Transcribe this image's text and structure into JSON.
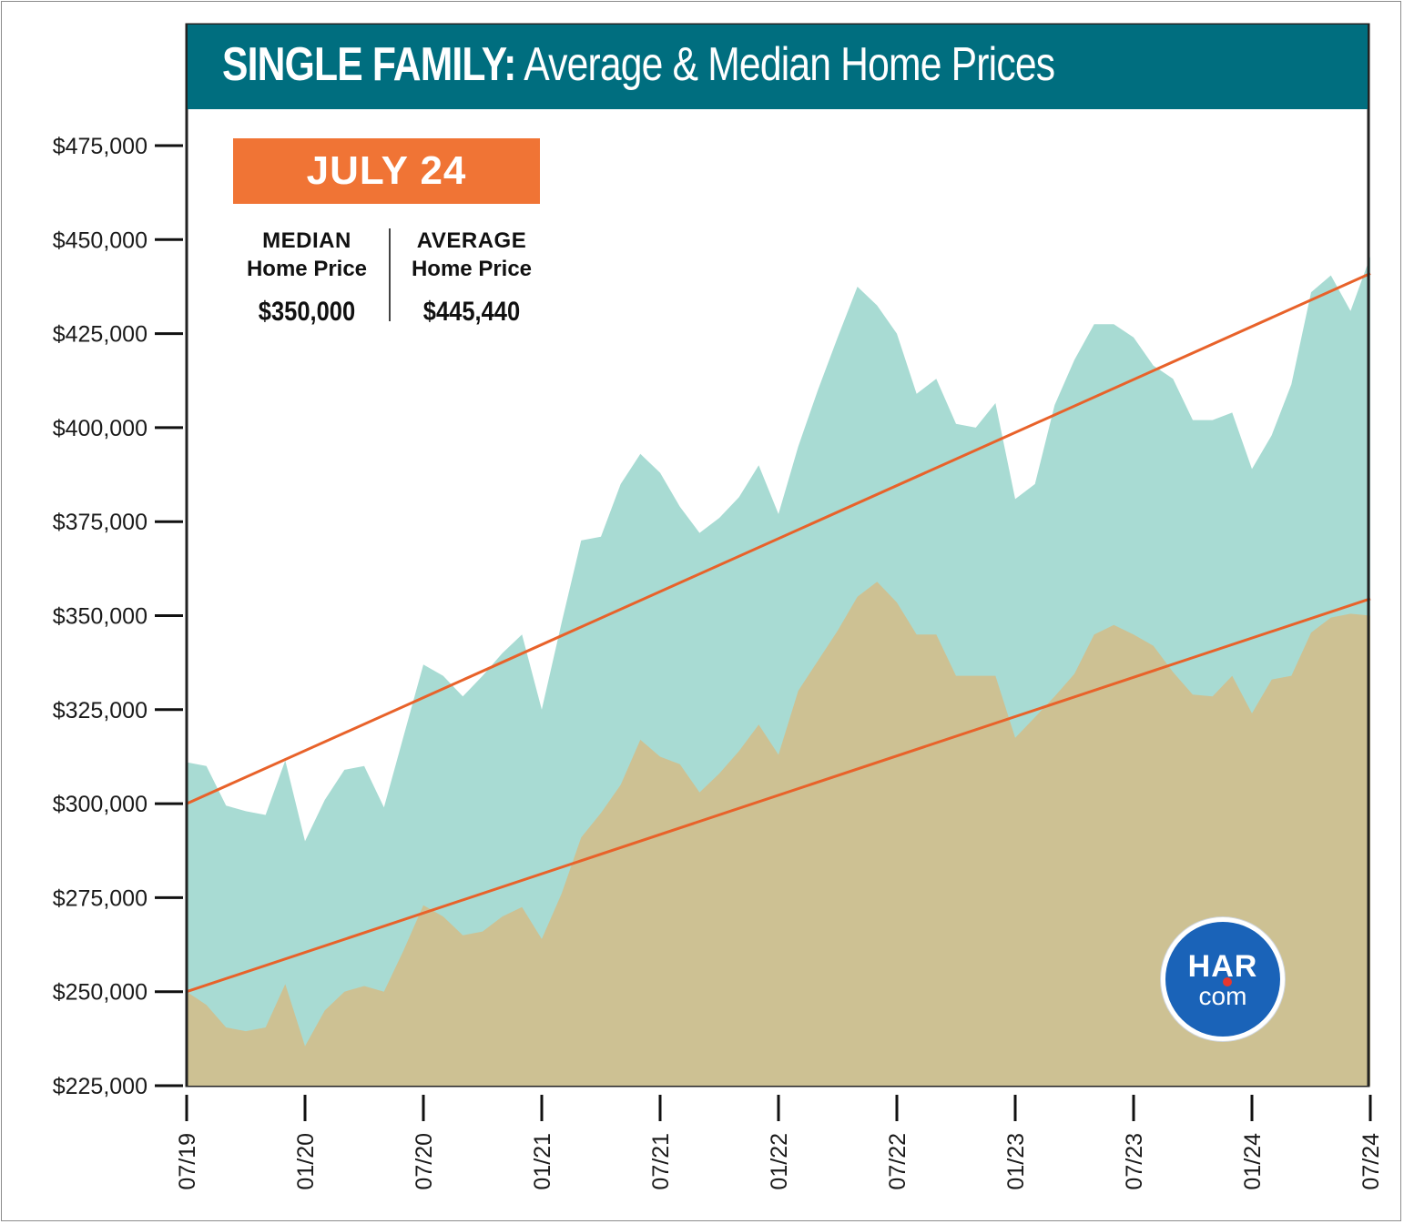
{
  "header": {
    "title_bold": "SINGLE FAMILY:",
    "title_rest": "Average & Median Home Prices"
  },
  "badge": {
    "label": "JULY 24"
  },
  "stats": {
    "median": {
      "label1": "MEDIAN",
      "label2": "Home Price",
      "value": "$350,000"
    },
    "average": {
      "label1": "AVERAGE",
      "label2": "Home Price",
      "value": "$445,440"
    }
  },
  "logo": {
    "line1": "HAR",
    "line2": "com"
  },
  "colors": {
    "title_bg": "#006e7f",
    "badge_bg": "#f07435",
    "average_fill": "#a8dbd3",
    "median_fill": "#cdc193",
    "trend_line": "#e8622a",
    "logo_bg": "#1a63b8"
  },
  "chart_data": {
    "type": "area",
    "title": "SINGLE FAMILY: Average & Median Home Prices",
    "xlabel": "",
    "ylabel": "",
    "ylim": [
      225000,
      475000
    ],
    "y_ticks": [
      225000,
      250000,
      275000,
      300000,
      325000,
      350000,
      375000,
      400000,
      425000,
      450000,
      475000
    ],
    "y_tick_labels": [
      "$225,000",
      "$250,000",
      "$275,000",
      "$300,000",
      "$325,000",
      "$350,000",
      "$375,000",
      "$400,000",
      "$425,000",
      "$450,000",
      "$475,000"
    ],
    "x_tick_labels": [
      "07/19",
      "01/20",
      "07/20",
      "01/21",
      "07/21",
      "01/22",
      "07/22",
      "01/23",
      "07/23",
      "01/24",
      "07/24"
    ],
    "x_tick_months": [
      0,
      6,
      12,
      18,
      24,
      30,
      36,
      42,
      48,
      54,
      60
    ],
    "months": [
      0,
      1,
      2,
      3,
      4,
      5,
      6,
      7,
      8,
      9,
      10,
      11,
      12,
      13,
      14,
      15,
      16,
      17,
      18,
      19,
      20,
      21,
      22,
      23,
      24,
      25,
      26,
      27,
      28,
      29,
      30,
      31,
      32,
      33,
      34,
      35,
      36,
      37,
      38,
      39,
      40,
      41,
      42,
      43,
      44,
      45,
      46,
      47,
      48,
      49,
      50,
      51,
      52,
      53,
      54,
      55,
      56,
      57,
      58,
      59,
      60
    ],
    "series": [
      {
        "name": "Average Home Price",
        "values": [
          311000,
          310000,
          299500,
          298000,
          297000,
          311500,
          290000,
          301000,
          309000,
          310000,
          299000,
          318000,
          337000,
          334000,
          328500,
          334000,
          340000,
          345000,
          325000,
          348000,
          370000,
          371000,
          385000,
          393000,
          388000,
          379000,
          372000,
          376000,
          381500,
          390000,
          377000,
          395000,
          410000,
          424000,
          437500,
          432500,
          425000,
          409000,
          413000,
          401000,
          400000,
          406500,
          381000,
          385000,
          406000,
          418000,
          427500,
          427500,
          424000,
          416500,
          413000,
          402000,
          402000,
          404000,
          389000,
          398000,
          411500,
          436000,
          440500,
          431000,
          445440
        ]
      },
      {
        "name": "Median Home Price",
        "values": [
          250000,
          246500,
          240500,
          239500,
          240500,
          252000,
          235500,
          245000,
          250000,
          251500,
          250000,
          261000,
          273000,
          270000,
          265000,
          266000,
          270000,
          272500,
          264000,
          276000,
          291000,
          297500,
          305000,
          317000,
          312500,
          310500,
          303000,
          308000,
          314000,
          321000,
          313000,
          330000,
          338000,
          346000,
          355000,
          359000,
          353500,
          345000,
          345000,
          334000,
          334000,
          334000,
          317500,
          323000,
          328500,
          334500,
          345000,
          347500,
          345000,
          342000,
          335000,
          329000,
          328500,
          334000,
          324000,
          333000,
          334000,
          345500,
          349500,
          350500,
          350000
        ]
      },
      {
        "name": "Average Trend",
        "values": [
          300000,
          441000
        ],
        "x": [
          0,
          60
        ]
      },
      {
        "name": "Median Trend",
        "values": [
          250000,
          354500
        ],
        "x": [
          0,
          60
        ]
      }
    ]
  }
}
